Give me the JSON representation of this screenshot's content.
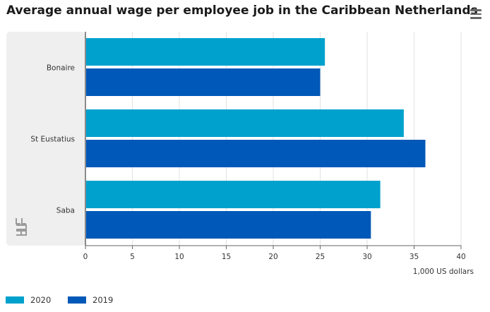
{
  "page": {
    "title": "Average annual wage per employee job in the Caribbean Netherlands",
    "menu_icon": "hamburger-icon",
    "logo_icon": "cbs-logo-icon"
  },
  "colors": {
    "series_2020": "#00a1cd",
    "series_2019": "#0058b8",
    "panel": "#efefef",
    "grid": "#e2e2e2",
    "axis": "#666666"
  },
  "chart_data": {
    "type": "bar",
    "orientation": "horizontal",
    "categories": [
      "Bonaire",
      "St Eustatius",
      "Saba"
    ],
    "series": [
      {
        "name": "2020",
        "values": [
          25.5,
          33.9,
          31.4
        ]
      },
      {
        "name": "2019",
        "values": [
          25.0,
          36.2,
          30.4
        ]
      }
    ],
    "xlabel": "1,000 US dollars",
    "xlim": [
      0,
      40
    ],
    "xticks": [
      0,
      5,
      10,
      15,
      20,
      25,
      30,
      35,
      40
    ],
    "grid": true,
    "legend": "bottom-left"
  }
}
